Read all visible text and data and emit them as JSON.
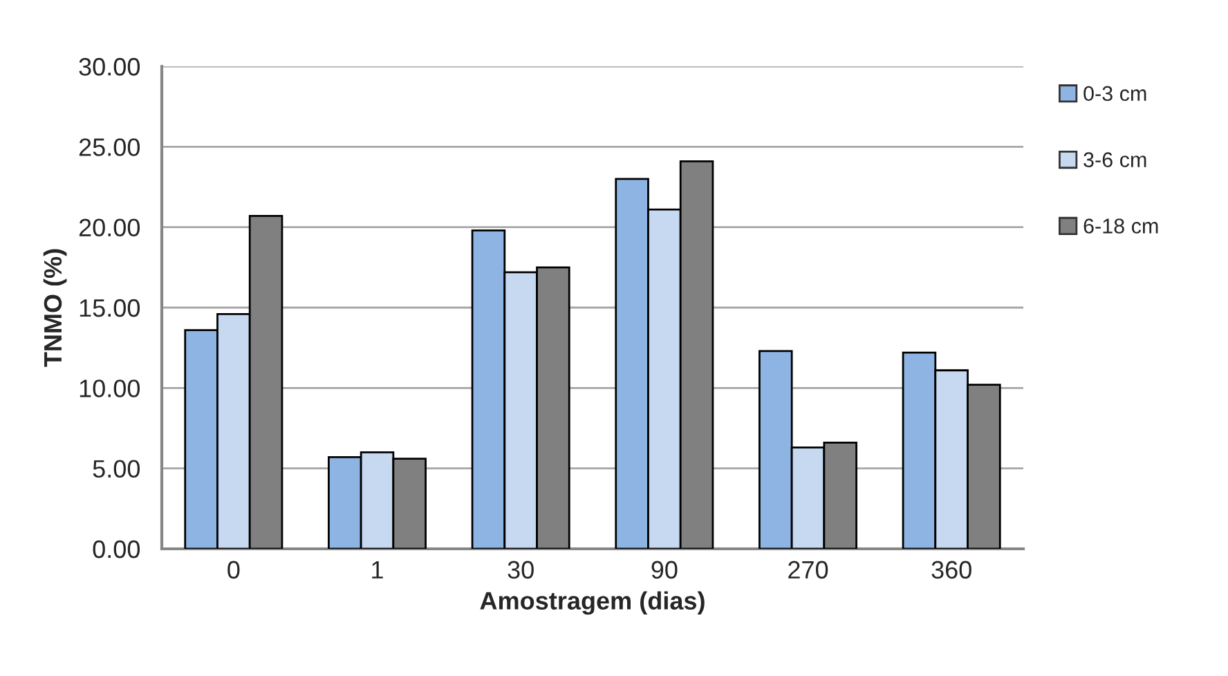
{
  "chart_data": {
    "type": "bar",
    "xlabel": "Amostragem (dias)",
    "ylabel": "TNMO (%)",
    "categories": [
      "0",
      "1",
      "30",
      "90",
      "270",
      "360"
    ],
    "series": [
      {
        "name": "0-3 cm",
        "color": "#8eb4e3",
        "values": [
          13.6,
          5.7,
          19.8,
          23.0,
          12.3,
          12.2
        ]
      },
      {
        "name": "3-6 cm",
        "color": "#c6d9f1",
        "values": [
          14.6,
          6.0,
          17.2,
          21.1,
          6.3,
          11.1
        ]
      },
      {
        "name": "6-18 cm",
        "color": "#808080",
        "values": [
          20.7,
          5.6,
          17.5,
          24.1,
          6.6,
          10.2
        ]
      }
    ],
    "ylim": [
      0,
      30
    ],
    "yticks": [
      {
        "value": 0,
        "label": "0.00"
      },
      {
        "value": 5,
        "label": "5.00"
      },
      {
        "value": 10,
        "label": "10.00"
      },
      {
        "value": 15,
        "label": "15.00"
      },
      {
        "value": 20,
        "label": "20.00"
      },
      {
        "value": 25,
        "label": "25.00"
      },
      {
        "value": 30,
        "label": "30.00"
      }
    ],
    "grid": "y",
    "legend": "top right"
  }
}
